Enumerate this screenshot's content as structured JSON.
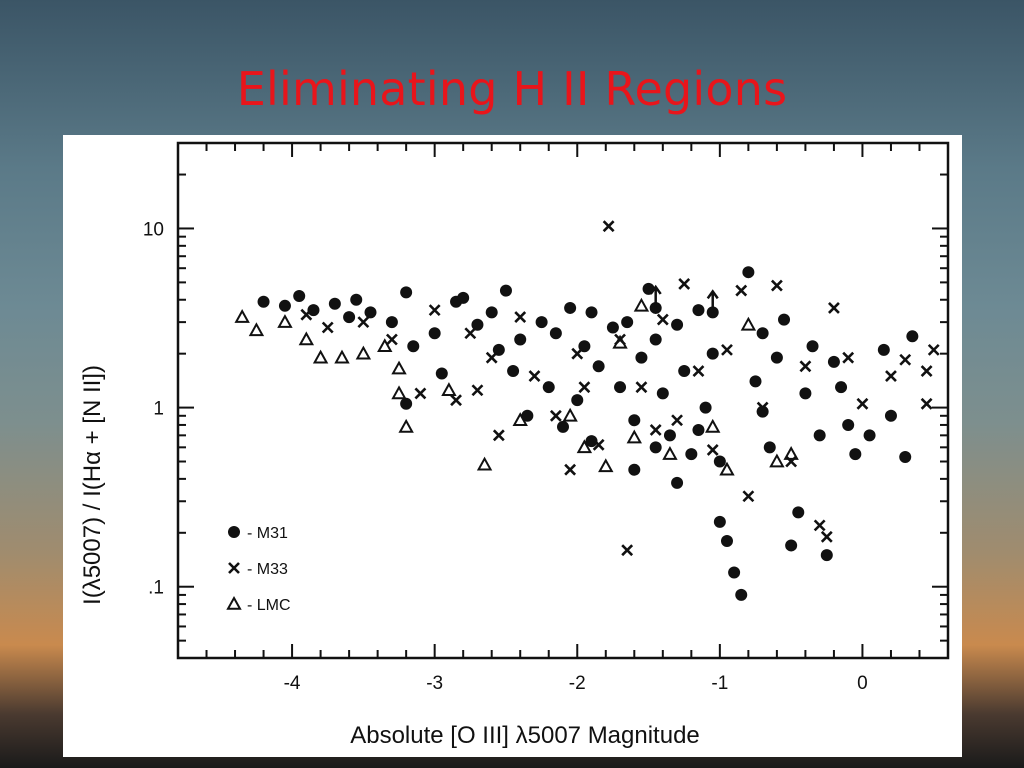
{
  "slide": {
    "title": "Eliminating H II Regions"
  },
  "colors": {
    "title": "#e8151b",
    "ink": "#111111",
    "panel": "#ffffff"
  },
  "chart_data": {
    "type": "scatter",
    "xlabel": "Absolute [O III] λ5007 Magnitude",
    "ylabel": "I(λ5007) / I(Hα + [N II])",
    "xlim": [
      -4.8,
      0.6
    ],
    "ylim": [
      0.04,
      30
    ],
    "yscale": "log",
    "x_ticks": [
      {
        "value": -4,
        "label": "-4"
      },
      {
        "value": -3,
        "label": "-3"
      },
      {
        "value": -2,
        "label": "-2"
      },
      {
        "value": -1,
        "label": "-1"
      },
      {
        "value": 0,
        "label": "0"
      }
    ],
    "y_ticks": [
      {
        "value": 10,
        "label": "10"
      },
      {
        "value": 1,
        "label": "1"
      },
      {
        "value": 0.1,
        "label": ".1"
      }
    ],
    "legend_position": "bottom-left",
    "series": [
      {
        "name": "M31",
        "legend_label": "- M31",
        "marker": "filled-circle",
        "points": [
          [
            -4.2,
            3.9
          ],
          [
            -4.05,
            3.7
          ],
          [
            -3.95,
            4.2
          ],
          [
            -3.85,
            3.5
          ],
          [
            -3.7,
            3.8
          ],
          [
            -3.6,
            3.2
          ],
          [
            -3.55,
            4.0
          ],
          [
            -3.45,
            3.4
          ],
          [
            -3.3,
            3.0
          ],
          [
            -3.2,
            4.4
          ],
          [
            -3.15,
            2.2
          ],
          [
            -3.2,
            1.05
          ],
          [
            -3.0,
            2.6
          ],
          [
            -2.95,
            1.55
          ],
          [
            -2.85,
            3.9
          ],
          [
            -2.8,
            4.1
          ],
          [
            -2.7,
            2.9
          ],
          [
            -2.6,
            3.4
          ],
          [
            -2.55,
            2.1
          ],
          [
            -2.5,
            4.5
          ],
          [
            -2.45,
            1.6
          ],
          [
            -2.4,
            2.4
          ],
          [
            -2.35,
            0.9
          ],
          [
            -2.25,
            3.0
          ],
          [
            -2.2,
            1.3
          ],
          [
            -2.15,
            2.6
          ],
          [
            -2.05,
            3.6
          ],
          [
            -2.0,
            1.1
          ],
          [
            -1.95,
            2.2
          ],
          [
            -1.9,
            3.4
          ],
          [
            -1.85,
            1.7
          ],
          [
            -1.75,
            2.8
          ],
          [
            -1.7,
            1.3
          ],
          [
            -1.65,
            3.0
          ],
          [
            -1.6,
            0.85
          ],
          [
            -1.55,
            1.9
          ],
          [
            -1.5,
            4.6
          ],
          [
            -1.45,
            2.4
          ],
          [
            -1.4,
            1.2
          ],
          [
            -1.35,
            0.7
          ],
          [
            -1.3,
            2.9
          ],
          [
            -1.25,
            1.6
          ],
          [
            -1.2,
            0.55
          ],
          [
            -1.15,
            3.5
          ],
          [
            -1.1,
            1.0
          ],
          [
            -1.05,
            2.0
          ],
          [
            -1.0,
            0.23
          ],
          [
            -0.95,
            0.18
          ],
          [
            -0.9,
            0.12
          ],
          [
            -0.85,
            0.09
          ],
          [
            -0.8,
            5.7
          ],
          [
            -0.75,
            1.4
          ],
          [
            -0.7,
            2.6
          ],
          [
            -0.65,
            0.6
          ],
          [
            -0.6,
            1.9
          ],
          [
            -0.55,
            3.1
          ],
          [
            -0.5,
            0.17
          ],
          [
            -0.45,
            0.26
          ],
          [
            -0.4,
            1.2
          ],
          [
            -0.35,
            2.2
          ],
          [
            -0.3,
            0.7
          ],
          [
            -0.25,
            0.15
          ],
          [
            -0.2,
            1.8
          ],
          [
            -0.15,
            1.3
          ],
          [
            -0.1,
            0.8
          ],
          [
            -0.05,
            0.55
          ],
          [
            0.05,
            0.7
          ],
          [
            0.15,
            2.1
          ],
          [
            0.2,
            0.9
          ],
          [
            0.3,
            0.53
          ],
          [
            0.35,
            2.5
          ],
          [
            -1.6,
            0.45
          ],
          [
            -1.3,
            0.38
          ],
          [
            -1.0,
            0.5
          ],
          [
            -0.7,
            0.95
          ],
          [
            -1.9,
            0.65
          ],
          [
            -2.1,
            0.78
          ],
          [
            -1.45,
            0.6
          ],
          [
            -1.15,
            0.75
          ]
        ]
      },
      {
        "name": "M33",
        "legend_label": "- M33",
        "marker": "x",
        "points": [
          [
            -3.9,
            3.3
          ],
          [
            -3.75,
            2.8
          ],
          [
            -3.5,
            3.0
          ],
          [
            -3.3,
            2.4
          ],
          [
            -3.1,
            1.2
          ],
          [
            -3.0,
            3.5
          ],
          [
            -2.85,
            1.1
          ],
          [
            -2.75,
            2.6
          ],
          [
            -2.6,
            1.9
          ],
          [
            -2.55,
            0.7
          ],
          [
            -2.4,
            3.2
          ],
          [
            -2.3,
            1.5
          ],
          [
            -2.15,
            0.9
          ],
          [
            -2.05,
            0.45
          ],
          [
            -2.0,
            2.0
          ],
          [
            -1.85,
            0.62
          ],
          [
            -1.78,
            10.3
          ],
          [
            -1.7,
            2.4
          ],
          [
            -1.65,
            0.16
          ],
          [
            -1.55,
            1.3
          ],
          [
            -1.4,
            3.1
          ],
          [
            -1.3,
            0.85
          ],
          [
            -1.25,
            4.9
          ],
          [
            -1.15,
            1.6
          ],
          [
            -1.05,
            0.58
          ],
          [
            -0.95,
            2.1
          ],
          [
            -0.85,
            4.5
          ],
          [
            -0.8,
            0.32
          ],
          [
            -0.7,
            1.0
          ],
          [
            -0.6,
            4.8
          ],
          [
            -0.5,
            0.5
          ],
          [
            -0.4,
            1.7
          ],
          [
            -0.3,
            0.22
          ],
          [
            -0.25,
            0.19
          ],
          [
            -0.2,
            3.6
          ],
          [
            -0.1,
            1.9
          ],
          [
            0.0,
            1.05
          ],
          [
            0.2,
            1.5
          ],
          [
            0.3,
            1.85
          ],
          [
            0.45,
            1.6
          ],
          [
            0.5,
            2.1
          ],
          [
            0.45,
            1.05
          ],
          [
            -1.95,
            1.3
          ],
          [
            -2.7,
            1.25
          ],
          [
            -1.45,
            0.75
          ]
        ]
      },
      {
        "name": "LMC",
        "legend_label": "- LMC",
        "marker": "open-triangle",
        "points": [
          [
            -4.35,
            3.2
          ],
          [
            -4.25,
            2.7
          ],
          [
            -4.05,
            3.0
          ],
          [
            -3.9,
            2.4
          ],
          [
            -3.8,
            1.9
          ],
          [
            -3.65,
            1.9
          ],
          [
            -3.5,
            2.0
          ],
          [
            -3.35,
            2.2
          ],
          [
            -3.25,
            1.65
          ],
          [
            -3.2,
            0.78
          ],
          [
            -3.25,
            1.2
          ],
          [
            -2.9,
            1.25
          ],
          [
            -2.65,
            0.48
          ],
          [
            -2.4,
            0.85
          ],
          [
            -2.05,
            0.9
          ],
          [
            -1.95,
            0.6
          ],
          [
            -1.8,
            0.47
          ],
          [
            -1.6,
            0.68
          ],
          [
            -1.35,
            0.55
          ],
          [
            -1.05,
            0.78
          ],
          [
            -0.95,
            0.45
          ],
          [
            -0.8,
            2.9
          ],
          [
            -0.6,
            0.5
          ],
          [
            -0.5,
            0.55
          ],
          [
            -1.55,
            3.7
          ],
          [
            -1.7,
            2.3
          ]
        ]
      }
    ],
    "upper_limits": [
      [
        -1.45,
        3.6
      ],
      [
        -1.05,
        3.4
      ]
    ]
  }
}
